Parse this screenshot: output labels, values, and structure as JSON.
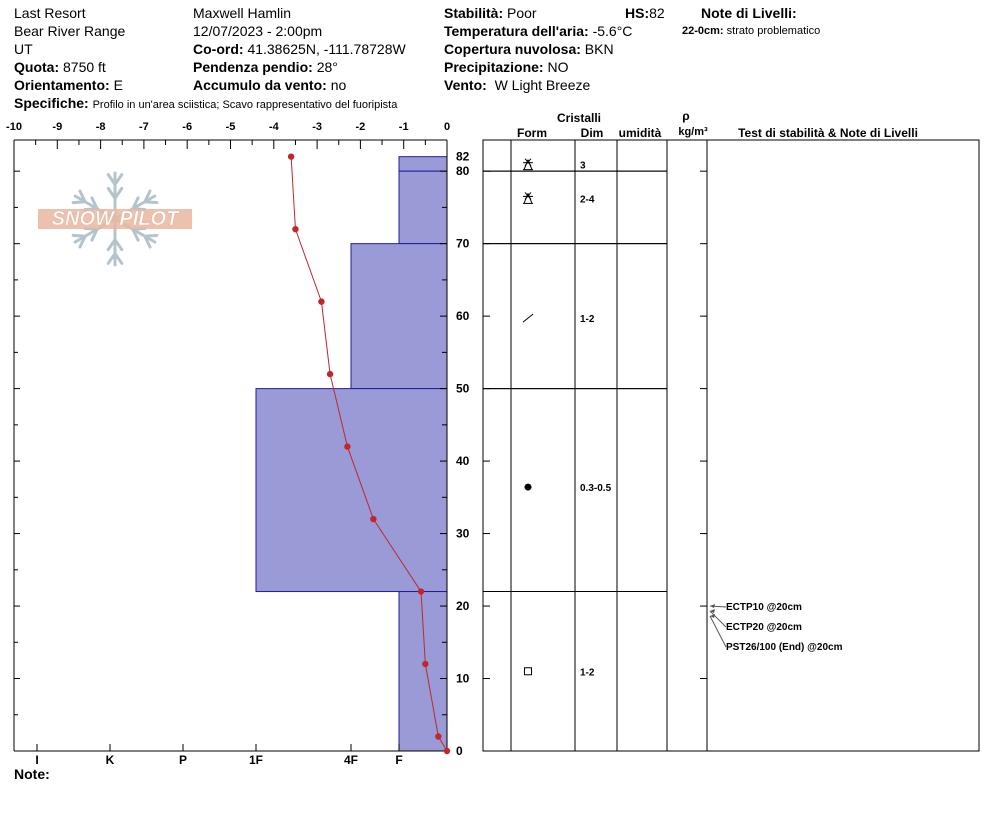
{
  "header": {
    "location": "Last Resort",
    "range": "Bear River Range",
    "state": "UT",
    "elevation_label": "Quota:",
    "elevation": "8750 ft",
    "aspect_label": "Orientamento:",
    "aspect": "E",
    "observer": "Maxwell Hamlin",
    "datetime": "12/07/2023 - 2:00pm",
    "coords_label": "Co-ord:",
    "coords": "41.38625N, -111.78728W",
    "slope_label": "Pendenza pendio:",
    "slope": "28°",
    "wind_loading_label": "Accumulo da vento:",
    "wind_loading": "no",
    "specifics_label": "Specifiche:",
    "specifics": "Profilo in un'area sciistica; Scavo rappresentativo del fuoripista",
    "stability_label": "Stabilità:",
    "stability": "Poor",
    "hs_label": "HS:",
    "hs": "82",
    "air_temp_label": "Temperatura dell'aria:",
    "air_temp": "-5.6°C",
    "cloud_label": "Copertura nuvolosa:",
    "cloud": "BKN",
    "precip_label": "Precipitazione:",
    "precip": "NO",
    "wind_label": "Vento:",
    "wind": "W Light Breeze",
    "layer_notes_title": "Note di Livelli:",
    "layer_note_depth": "22-0cm:",
    "layer_note_text": "strato problematico",
    "notes_label": "Note:"
  },
  "columns": {
    "crystals": "Cristalli",
    "form": "Form",
    "size": "Dim",
    "moisture": "umidità",
    "density_symbol": "ρ",
    "density_unit": "kg/m³",
    "tests": "Test di stabilità & Note di Livelli"
  },
  "logo_text": "SNOW PILOT",
  "chart_data": {
    "type": "snow_profile",
    "temp_axis": {
      "ticks": [
        -10,
        -9,
        -8,
        -7,
        -6,
        -5,
        -4,
        -3,
        -2,
        -1,
        0
      ],
      "range": [
        -10,
        0
      ]
    },
    "height_axis": {
      "ticks": [
        0,
        10,
        20,
        30,
        40,
        50,
        60,
        70,
        80
      ],
      "top_label": "82",
      "range": [
        0,
        82
      ]
    },
    "hardness_axis": {
      "labels": [
        "I",
        "K",
        "P",
        "1F",
        "4F",
        "F"
      ]
    },
    "temperature_profile": [
      {
        "h": 82,
        "t": -3.6
      },
      {
        "h": 72,
        "t": -3.5
      },
      {
        "h": 62,
        "t": -2.9
      },
      {
        "h": 52,
        "t": -2.7
      },
      {
        "h": 42,
        "t": -2.3
      },
      {
        "h": 32,
        "t": -1.7
      },
      {
        "h": 22,
        "t": -0.6
      },
      {
        "h": 12,
        "t": -0.5
      },
      {
        "h": 2,
        "t": -0.2
      },
      {
        "h": 0,
        "t": 0
      }
    ],
    "layers": [
      {
        "top": 82,
        "bottom": 80,
        "hardness": "F",
        "form": "new-snow",
        "size": "3"
      },
      {
        "top": 80,
        "bottom": 70,
        "hardness": "F",
        "form": "new-snow",
        "size": "2-4"
      },
      {
        "top": 70,
        "bottom": 50,
        "hardness": "4F",
        "form": "decomposing",
        "size": "1-2"
      },
      {
        "top": 50,
        "bottom": 22,
        "hardness": "1F",
        "form": "rounded",
        "size": "0.3-0.5"
      },
      {
        "top": 22,
        "bottom": 0,
        "hardness": "F",
        "form": "faceted",
        "size": "1-2"
      }
    ],
    "tests": [
      {
        "label": "ECTP10 @20cm",
        "depth": 20
      },
      {
        "label": "ECTP20 @20cm",
        "depth": 20
      },
      {
        "label": "PST26/100 (End) @20cm",
        "depth": 20
      }
    ]
  },
  "colors": {
    "layer_fill": "#9a9ad6",
    "layer_stroke": "#1e1e9a",
    "temp_line": "#c0272d",
    "logo": "#e9b7a1"
  }
}
